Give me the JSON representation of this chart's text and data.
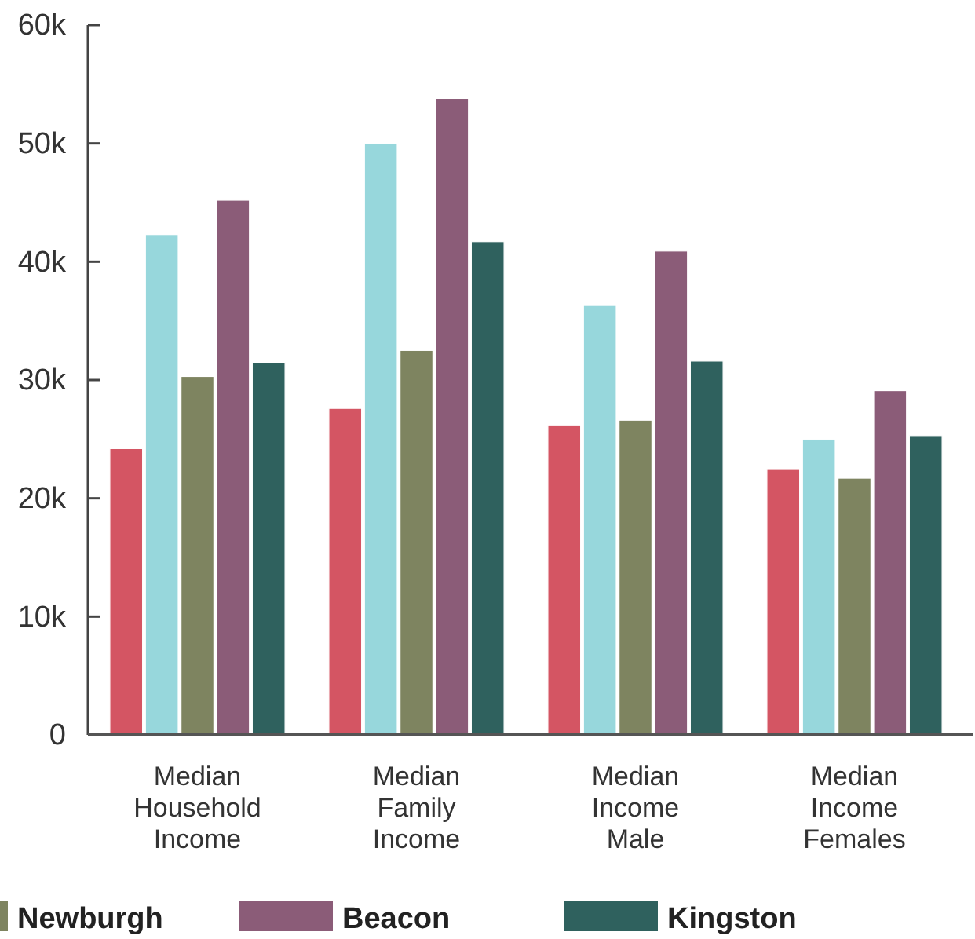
{
  "chart_data": {
    "type": "bar",
    "categories": [
      "Median\nHousehold\nIncome",
      "Median\nFamily\nIncome",
      "Median\nIncome\nMale",
      "Median\nIncome\nFemales"
    ],
    "series": [
      {
        "color": "#d45563",
        "values": [
          24.2,
          27.6,
          26.2,
          22.5
        ]
      },
      {
        "color": "#97d7dc",
        "values": [
          42.3,
          50.0,
          36.3,
          25.0
        ]
      },
      {
        "name": "Newburgh",
        "color": "#7e8460",
        "values": [
          30.3,
          32.5,
          26.6,
          21.7
        ]
      },
      {
        "name": "Beacon",
        "color": "#8b5c78",
        "values": [
          45.2,
          53.8,
          40.9,
          29.1
        ]
      },
      {
        "name": "Kingston",
        "color": "#2f615e",
        "values": [
          31.5,
          41.7,
          31.6,
          25.3
        ]
      }
    ],
    "ylim": [
      0,
      60
    ],
    "yticks": [
      {
        "value": 0,
        "label": "0"
      },
      {
        "value": 10,
        "label": "10k"
      },
      {
        "value": 20,
        "label": "20k"
      },
      {
        "value": 30,
        "label": "30k"
      },
      {
        "value": 40,
        "label": "40k"
      },
      {
        "value": 50,
        "label": "50k"
      },
      {
        "value": 60,
        "label": "60k"
      }
    ],
    "grid": false,
    "legend": "bottom"
  }
}
